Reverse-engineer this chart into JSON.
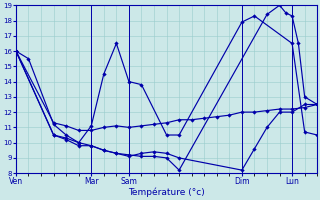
{
  "xlabel": "Température (°c)",
  "background_color": "#cce8e8",
  "grid_color": "#99cccc",
  "line_color": "#0000aa",
  "spine_color": "#0000aa",
  "ylim": [
    8,
    19
  ],
  "xlim": [
    0,
    24
  ],
  "yticks": [
    8,
    9,
    10,
    11,
    12,
    13,
    14,
    15,
    16,
    17,
    18,
    19
  ],
  "xtick_positions": [
    0,
    6,
    9,
    18,
    22
  ],
  "xtick_labels": [
    "Ven",
    "Mar",
    "Sam",
    "Dim",
    "Lun"
  ],
  "vline_positions": [
    0,
    6,
    9,
    18,
    22
  ],
  "s1_x": [
    0,
    1,
    3,
    4,
    5,
    6,
    7,
    8,
    9,
    10,
    12,
    13,
    18,
    19,
    22,
    23,
    24
  ],
  "s1_y": [
    16,
    15.5,
    11.2,
    10.5,
    10.0,
    11.1,
    14.5,
    16.5,
    14.0,
    13.8,
    10.5,
    10.5,
    17.9,
    18.3,
    16.5,
    10.7,
    10.5
  ],
  "s2_x": [
    0,
    3,
    4,
    5,
    6,
    7,
    8,
    9,
    10,
    11,
    12,
    13,
    14,
    15,
    16,
    17,
    18,
    19,
    20,
    21,
    22,
    23,
    24
  ],
  "s2_y": [
    16,
    11.3,
    11.1,
    10.8,
    10.8,
    11.0,
    11.1,
    11.0,
    11.1,
    11.2,
    11.3,
    11.5,
    11.5,
    11.6,
    11.7,
    11.8,
    12.0,
    12.0,
    12.1,
    12.2,
    12.2,
    12.3,
    12.5
  ],
  "s3_x": [
    0,
    3,
    4,
    5,
    6,
    7,
    8,
    9,
    10,
    11,
    12,
    13,
    18,
    19,
    20,
    21,
    22,
    23,
    24
  ],
  "s3_y": [
    16,
    10.5,
    10.2,
    9.8,
    9.8,
    9.5,
    9.3,
    9.1,
    9.3,
    9.4,
    9.3,
    9.0,
    8.2,
    9.6,
    11.0,
    12.0,
    12.0,
    12.5,
    12.5
  ],
  "s4_x": [
    0,
    3,
    4,
    5,
    6,
    7,
    8,
    9,
    10,
    11,
    12,
    13,
    20,
    21,
    21.5,
    22,
    22.5,
    23,
    24
  ],
  "s4_y": [
    16,
    10.5,
    10.3,
    10.0,
    9.8,
    9.5,
    9.3,
    9.2,
    9.1,
    9.1,
    9.0,
    8.2,
    18.4,
    19.0,
    18.5,
    18.3,
    16.5,
    13.0,
    12.5
  ]
}
